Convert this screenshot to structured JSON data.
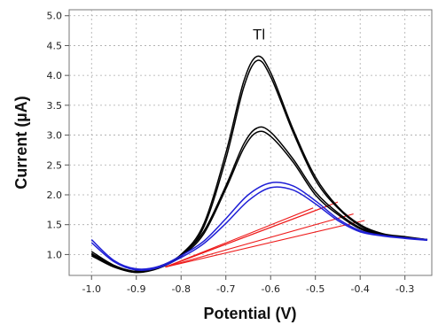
{
  "chart_data": {
    "type": "line",
    "title": "",
    "xlabel": "Potential (V)",
    "ylabel": "Current (µA)",
    "xlim": [
      -1.05,
      -0.24
    ],
    "ylim": [
      0.65,
      5.1
    ],
    "x_ticks": [
      "-1.0",
      "-0.9",
      "-0.8",
      "-0.7",
      "-0.6",
      "-0.5",
      "-0.4",
      "-0.3"
    ],
    "x_tick_values": [
      -1.0,
      -0.9,
      -0.8,
      -0.7,
      -0.6,
      -0.5,
      -0.4,
      -0.3
    ],
    "y_ticks": [
      "1.0",
      "1.5",
      "2.0",
      "2.5",
      "3.0",
      "3.5",
      "4.0",
      "4.5",
      "5.0"
    ],
    "y_tick_values": [
      1.0,
      1.5,
      2.0,
      2.5,
      3.0,
      3.5,
      4.0,
      4.5,
      5.0
    ],
    "grid": true,
    "annotations": [
      {
        "text": "Tl",
        "x": -0.626,
        "y": 4.6
      }
    ],
    "series": [
      {
        "color": "#000000",
        "x": [
          -1.0,
          -0.95,
          -0.9,
          -0.85,
          -0.8,
          -0.75,
          -0.7,
          -0.66,
          -0.63,
          -0.6,
          -0.55,
          -0.5,
          -0.45,
          -0.4,
          -0.35,
          -0.3,
          -0.25
        ],
        "y": [
          1.05,
          0.82,
          0.72,
          0.8,
          1.0,
          1.5,
          2.7,
          3.9,
          4.32,
          4.05,
          3.1,
          2.3,
          1.8,
          1.5,
          1.35,
          1.3,
          1.25
        ]
      },
      {
        "color": "#000000",
        "x": [
          -1.0,
          -0.95,
          -0.9,
          -0.85,
          -0.8,
          -0.75,
          -0.7,
          -0.66,
          -0.63,
          -0.6,
          -0.55,
          -0.5,
          -0.45,
          -0.4,
          -0.35,
          -0.3,
          -0.25
        ],
        "y": [
          1.0,
          0.8,
          0.7,
          0.78,
          0.98,
          1.45,
          2.6,
          3.8,
          4.25,
          3.98,
          3.05,
          2.25,
          1.78,
          1.48,
          1.34,
          1.29,
          1.25
        ]
      },
      {
        "color": "#000000",
        "x": [
          -1.0,
          -0.95,
          -0.9,
          -0.85,
          -0.8,
          -0.75,
          -0.7,
          -0.66,
          -0.63,
          -0.6,
          -0.55,
          -0.5,
          -0.45,
          -0.4,
          -0.35,
          -0.3,
          -0.25
        ],
        "y": [
          1.02,
          0.81,
          0.71,
          0.79,
          0.99,
          1.38,
          2.15,
          2.85,
          3.12,
          3.05,
          2.6,
          2.05,
          1.7,
          1.45,
          1.33,
          1.28,
          1.25
        ]
      },
      {
        "color": "#000000",
        "x": [
          -1.0,
          -0.95,
          -0.9,
          -0.85,
          -0.8,
          -0.75,
          -0.7,
          -0.66,
          -0.63,
          -0.6,
          -0.55,
          -0.5,
          -0.45,
          -0.4,
          -0.35,
          -0.3,
          -0.25
        ],
        "y": [
          0.98,
          0.79,
          0.7,
          0.77,
          0.97,
          1.34,
          2.1,
          2.78,
          3.05,
          2.98,
          2.55,
          2.0,
          1.67,
          1.43,
          1.32,
          1.28,
          1.24
        ]
      },
      {
        "color": "#1f1fd6",
        "x": [
          -1.0,
          -0.95,
          -0.9,
          -0.85,
          -0.8,
          -0.75,
          -0.7,
          -0.65,
          -0.6,
          -0.55,
          -0.5,
          -0.45,
          -0.4,
          -0.35,
          -0.3,
          -0.25
        ],
        "y": [
          1.25,
          0.9,
          0.76,
          0.8,
          0.98,
          1.22,
          1.6,
          2.0,
          2.2,
          2.15,
          1.9,
          1.6,
          1.4,
          1.32,
          1.28,
          1.25
        ]
      },
      {
        "color": "#1f1fd6",
        "x": [
          -1.0,
          -0.95,
          -0.9,
          -0.85,
          -0.8,
          -0.75,
          -0.7,
          -0.65,
          -0.6,
          -0.55,
          -0.5,
          -0.45,
          -0.4,
          -0.35,
          -0.3,
          -0.25
        ],
        "y": [
          1.2,
          0.88,
          0.74,
          0.78,
          0.95,
          1.18,
          1.52,
          1.9,
          2.12,
          2.08,
          1.85,
          1.57,
          1.38,
          1.31,
          1.27,
          1.24
        ]
      }
    ],
    "baselines": [
      {
        "color": "#ee1c1c",
        "x": [
          -0.835,
          -0.505
        ],
        "y": [
          0.79,
          1.78
        ]
      },
      {
        "color": "#ee1c1c",
        "x": [
          -0.835,
          -0.47
        ],
        "y": [
          0.79,
          1.82
        ]
      },
      {
        "color": "#ee1c1c",
        "x": [
          -0.835,
          -0.45
        ],
        "y": [
          0.79,
          1.88
        ]
      },
      {
        "color": "#ee1c1c",
        "x": [
          -0.835,
          -0.415
        ],
        "y": [
          0.79,
          1.68
        ]
      },
      {
        "color": "#ee1c1c",
        "x": [
          -0.835,
          -0.39
        ],
        "y": [
          0.79,
          1.57
        ]
      }
    ]
  }
}
